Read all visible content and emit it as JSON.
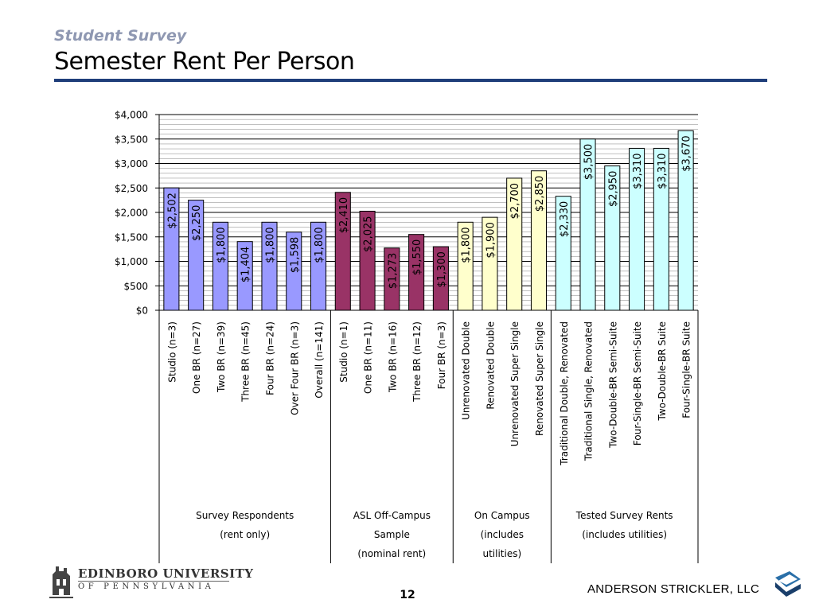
{
  "header": {
    "subtitle": "Student Survey",
    "title": "Semester Rent Per Person"
  },
  "chart_data": {
    "type": "bar",
    "ylim": [
      0,
      4000
    ],
    "yticks": [
      "$0",
      "$500",
      "$1,000",
      "$1,500",
      "$2,000",
      "$2,500",
      "$3,000",
      "$3,500",
      "$4,000"
    ],
    "ytick_values": [
      0,
      500,
      1000,
      1500,
      2000,
      2500,
      3000,
      3500,
      4000
    ],
    "minor_grid_step": 100,
    "grid": true,
    "colors": {
      "survey": "#9999ff",
      "asl": "#993366",
      "campus": "#ffffcc",
      "tested": "#ccffff"
    },
    "categories": [
      "Studio (n=3)",
      "One BR (n=27)",
      "Two BR (n=39)",
      "Three BR (n=45)",
      "Four BR (n=24)",
      "Over Four BR (n=3)",
      "Overall (n=141)",
      "Studio (n=1)",
      "One BR (n=11)",
      "Two BR (n=16)",
      "Three BR (n=12)",
      "Four BR (n=3)",
      "Unrenovated Double",
      "Renovated Double",
      "Unrenovated Super Single",
      "Renovated Super Single",
      "Traditional Double, Renovated",
      "Traditional Single, Renovated",
      "Two-Double-BR Semi-Suite",
      "Four-Single-BR Semi-Suite",
      "Two-Double-BR Suite",
      "Four-Single-BR Suite"
    ],
    "values": [
      2502,
      2250,
      1800,
      1404,
      1800,
      1598,
      1800,
      2410,
      2025,
      1273,
      1550,
      1300,
      1800,
      1900,
      2700,
      2850,
      2330,
      3500,
      2950,
      3310,
      3310,
      3670
    ],
    "data_labels": [
      "$2,502",
      "$2,250",
      "$1,800",
      "$1,404",
      "$1,800",
      "$1,598",
      "$1,800",
      "$2,410",
      "$2,025",
      "$1,273",
      "$1,550",
      "$1,300",
      "$1,800",
      "$1,900",
      "$2,700",
      "$2,850",
      "$2,330",
      "$3,500",
      "$2,950",
      "$3,310",
      "$3,310",
      "$3,670"
    ],
    "groups": [
      {
        "key": "survey",
        "count": 7,
        "label_lines": [
          "Survey Respondents",
          "(rent only)"
        ]
      },
      {
        "key": "asl",
        "count": 5,
        "label_lines": [
          "ASL Off-Campus",
          "Sample",
          "(nominal rent)"
        ]
      },
      {
        "key": "campus",
        "count": 4,
        "label_lines": [
          "On Campus",
          "(includes",
          "utilities)"
        ]
      },
      {
        "key": "tested",
        "count": 6,
        "label_lines": [
          "Tested Survey Rents",
          "(includes utilities)"
        ]
      }
    ]
  },
  "footer": {
    "university_name": "EDINBORO UNIVERSITY",
    "university_sub": "OF PENNSYLVANIA",
    "page_number": "12",
    "company": "ANDERSON STRICKLER, LLC"
  }
}
